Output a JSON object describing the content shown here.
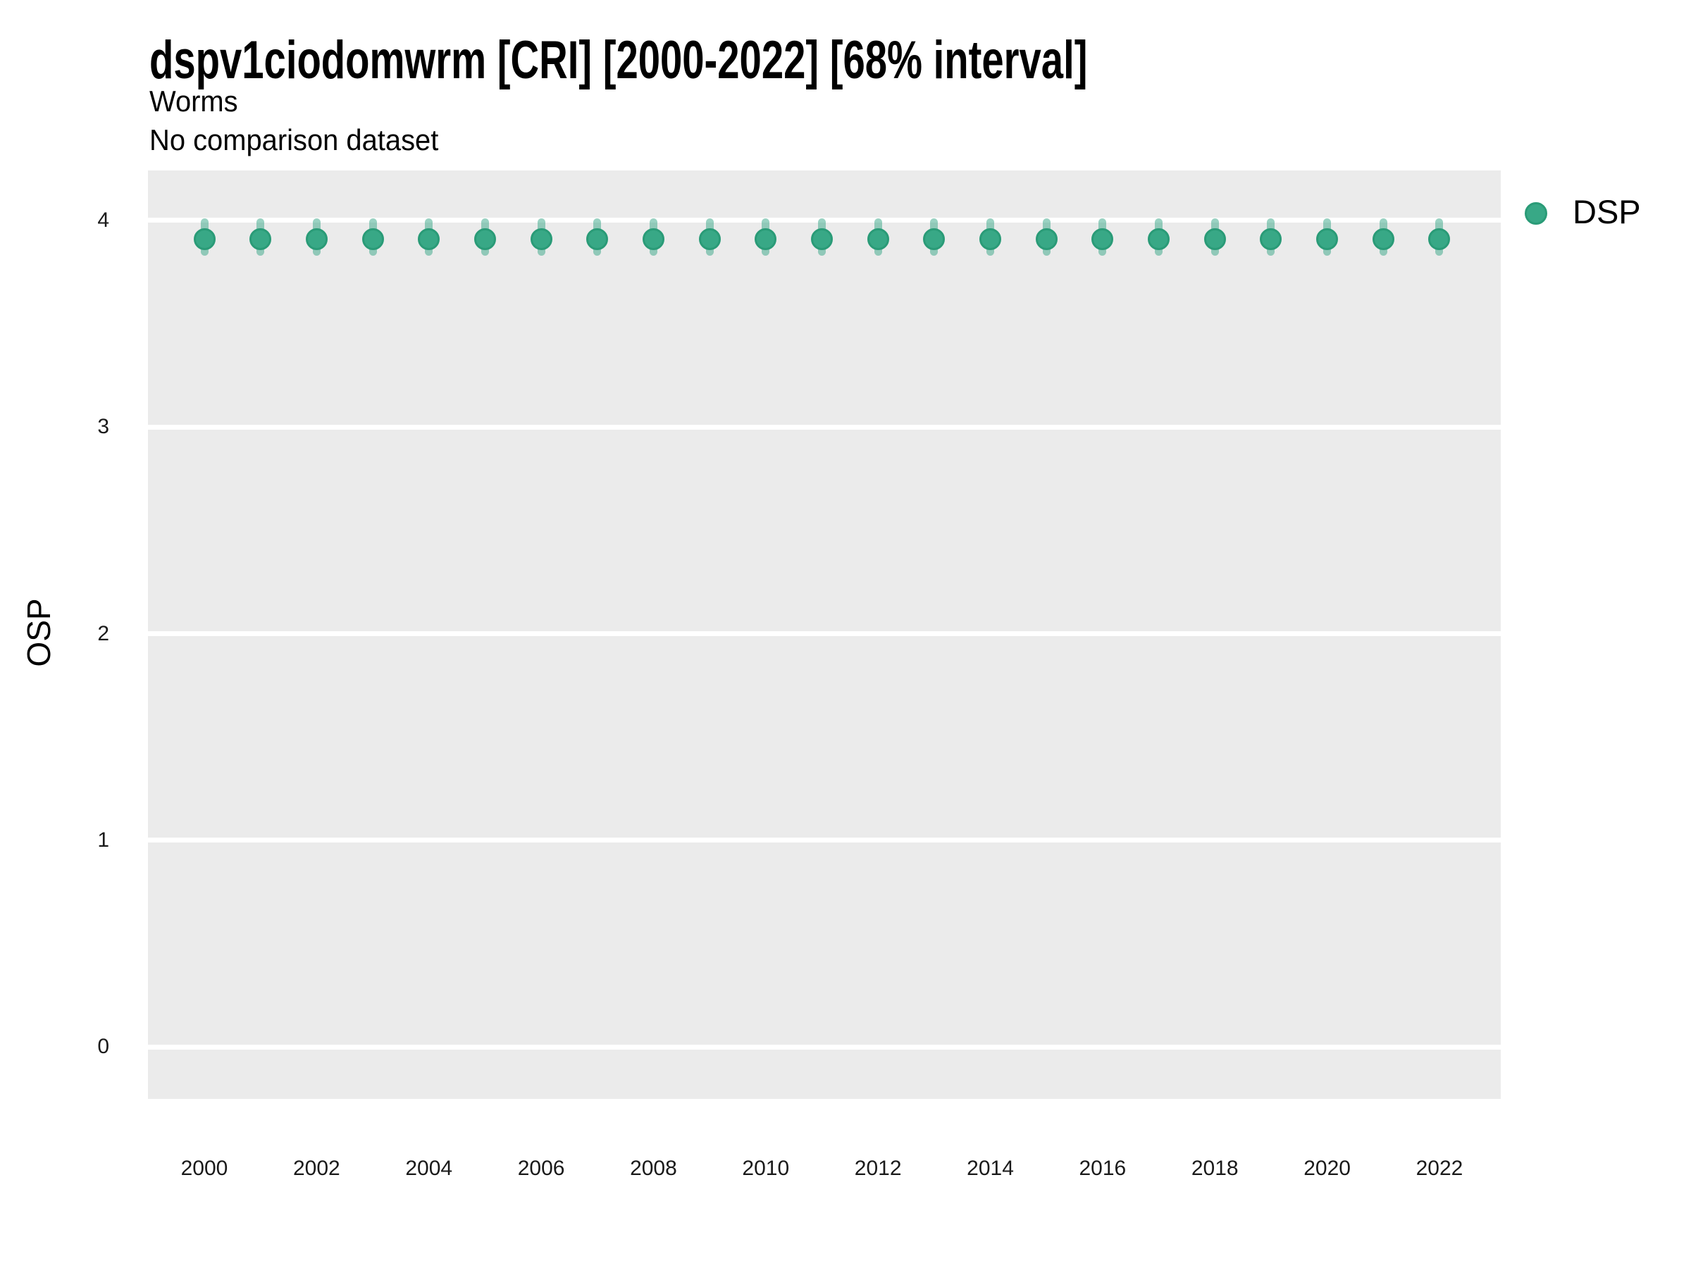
{
  "header": {
    "title": "dspv1ciodomwrm [CRI] [2000-2022] [68% interval]",
    "subtitle": "Worms",
    "comparison": "No comparison dataset"
  },
  "legend": {
    "items": [
      {
        "label": "DSP",
        "color": "#38a886"
      }
    ]
  },
  "chart_data": {
    "type": "scatter",
    "subtype": "pointrange",
    "title": "dspv1ciodomwrm [CRI] [2000-2022] [68% interval]",
    "subtitle": "Worms",
    "comparison_note": "No comparison dataset",
    "interval_label": "68% interval",
    "xlabel": "",
    "ylabel": "OSP",
    "x": [
      2000,
      2001,
      2002,
      2003,
      2004,
      2005,
      2006,
      2007,
      2008,
      2009,
      2010,
      2011,
      2012,
      2013,
      2014,
      2015,
      2016,
      2017,
      2018,
      2019,
      2020,
      2021,
      2022
    ],
    "series": [
      {
        "name": "DSP",
        "values": [
          3.91,
          3.91,
          3.91,
          3.91,
          3.91,
          3.91,
          3.91,
          3.91,
          3.91,
          3.91,
          3.91,
          3.91,
          3.91,
          3.91,
          3.91,
          3.91,
          3.91,
          3.91,
          3.91,
          3.91,
          3.91,
          3.91,
          3.91
        ],
        "interval_low": [
          3.83,
          3.83,
          3.83,
          3.83,
          3.83,
          3.83,
          3.83,
          3.83,
          3.83,
          3.83,
          3.83,
          3.83,
          3.83,
          3.83,
          3.83,
          3.83,
          3.83,
          3.83,
          3.83,
          3.83,
          3.83,
          3.83,
          3.83
        ],
        "interval_high": [
          4.01,
          4.01,
          4.01,
          4.01,
          4.01,
          4.01,
          4.01,
          4.01,
          4.01,
          4.01,
          4.01,
          4.01,
          4.01,
          4.01,
          4.01,
          4.01,
          4.01,
          4.01,
          4.01,
          4.01,
          4.01,
          4.01,
          4.01
        ]
      }
    ],
    "yticks": [
      0,
      1,
      2,
      3,
      4
    ],
    "xticks": [
      2000,
      2002,
      2004,
      2006,
      2008,
      2010,
      2012,
      2014,
      2016,
      2018,
      2020,
      2022
    ],
    "ylim": [
      -0.252,
      4.242
    ],
    "grid": "horizontal-major-only",
    "legend_position": "right-top",
    "colors": {
      "point_fill": "#38a886",
      "point_stroke": "#2a9b77",
      "interval": "rgba(54,166,133,0.5)",
      "panel_bg": "#ebebeb",
      "gridline": "#ffffff",
      "axis_text": "#1a1a1a"
    }
  }
}
